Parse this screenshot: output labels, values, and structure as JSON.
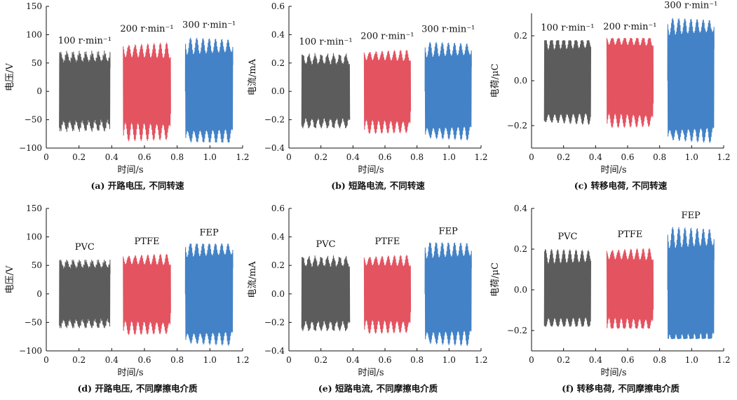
{
  "chart_data": [
    {
      "type": "line",
      "panel": "a",
      "caption": "(a) 开路电压, 不同转速",
      "xlabel": "时间/s",
      "ylabel": "电压/V",
      "xlim": [
        0,
        1.2
      ],
      "ylim": [
        -100,
        150
      ],
      "xticks": [
        "0",
        "0.2",
        "0.4",
        "0.6",
        "0.8",
        "1.0",
        "1.2"
      ],
      "yticks": [
        "−100",
        "−50",
        "0",
        "50",
        "100",
        "150"
      ],
      "series": [
        {
          "name": "100 r·min⁻¹",
          "color": "#4a4a4a",
          "x_range": [
            0.08,
            0.39
          ],
          "min_amp": 55,
          "max_amp": 72,
          "y_peak": 72,
          "y_trough": -72
        },
        {
          "name": "200 r·min⁻¹",
          "color": "#e0404f",
          "x_range": [
            0.47,
            0.76
          ],
          "min_amp": 60,
          "max_amp": 88,
          "y_peak": 88,
          "y_trough": -88
        },
        {
          "name": "300 r·min⁻¹",
          "color": "#2f74c0",
          "x_range": [
            0.85,
            1.14
          ],
          "min_amp": 70,
          "max_amp": 95,
          "y_peak": 95,
          "y_trough": -90
        }
      ],
      "annotations": [
        "100 r·min⁻¹",
        "200 r·min⁻¹",
        "300 r·min⁻¹"
      ]
    },
    {
      "type": "line",
      "panel": "b",
      "caption": "(b) 短路电流, 不同转速",
      "xlabel": "时间/s",
      "ylabel": "电流/mA",
      "xlim": [
        0,
        1.2
      ],
      "ylim": [
        -0.4,
        0.6
      ],
      "xticks": [
        "0",
        "0.2",
        "0.4",
        "0.6",
        "0.8",
        "1.0",
        "1.2"
      ],
      "yticks": [
        "−0.4",
        "−0.2",
        "0.0",
        "0.2",
        "0.4",
        "0.6"
      ],
      "series": [
        {
          "name": "100 r·min⁻¹",
          "color": "#4a4a4a",
          "x_range": [
            0.08,
            0.38
          ],
          "min_amp": 0.2,
          "max_amp": 0.27,
          "y_peak": 0.27,
          "y_trough": -0.26
        },
        {
          "name": "200 r·min⁻¹",
          "color": "#e0404f",
          "x_range": [
            0.47,
            0.76
          ],
          "min_amp": 0.22,
          "max_amp": 0.3,
          "y_peak": 0.3,
          "y_trough": -0.3
        },
        {
          "name": "300 r·min⁻¹",
          "color": "#2f74c0",
          "x_range": [
            0.85,
            1.14
          ],
          "min_amp": 0.26,
          "max_amp": 0.35,
          "y_peak": 0.35,
          "y_trough": -0.35
        }
      ],
      "annotations": [
        "100 r·min⁻¹",
        "200 r·min⁻¹",
        "300 r·min⁻¹"
      ]
    },
    {
      "type": "line",
      "panel": "c",
      "caption": "(c) 转移电荷, 不同转速",
      "xlabel": "时间/s",
      "ylabel": "电荷/μC",
      "xlim": [
        0,
        1.2
      ],
      "ylim": [
        -0.3,
        0.3
      ],
      "xticks": [
        "0",
        "0.2",
        "0.4",
        "0.6",
        "0.8",
        "1.0",
        "1.2"
      ],
      "yticks": [
        "−0.2",
        "0.0",
        "0.2"
      ],
      "series": [
        {
          "name": "100 r·min⁻¹",
          "color": "#4a4a4a",
          "x_range": [
            0.08,
            0.37
          ],
          "min_amp": 0.15,
          "max_amp": 0.2,
          "y_peak": 0.18,
          "y_trough": -0.21
        },
        {
          "name": "200 r·min⁻¹",
          "color": "#e0404f",
          "x_range": [
            0.47,
            0.76
          ],
          "min_amp": 0.16,
          "max_amp": 0.21,
          "y_peak": 0.19,
          "y_trough": -0.22
        },
        {
          "name": "300 r·min⁻¹",
          "color": "#2f74c0",
          "x_range": [
            0.85,
            1.14
          ],
          "min_amp": 0.22,
          "max_amp": 0.28,
          "y_peak": 0.28,
          "y_trough": -0.28
        }
      ],
      "annotations": [
        "100 r·min⁻¹",
        "200 r·min⁻¹",
        "300 r·min⁻¹"
      ]
    },
    {
      "type": "line",
      "panel": "d",
      "caption": "(d) 开路电压, 不同摩擦电介质",
      "xlabel": "时间/s",
      "ylabel": "电压/V",
      "xlim": [
        0,
        1.2
      ],
      "ylim": [
        -100,
        150
      ],
      "xticks": [
        "0",
        "0.2",
        "0.4",
        "0.6",
        "0.8",
        "1.0",
        "1.2"
      ],
      "yticks": [
        "−100",
        "−50",
        "0",
        "50",
        "100",
        "150"
      ],
      "series": [
        {
          "name": "PVC",
          "color": "#4a4a4a",
          "x_range": [
            0.08,
            0.39
          ],
          "min_amp": 48,
          "max_amp": 62,
          "y_peak": 60,
          "y_trough": -60
        },
        {
          "name": "PTFE",
          "color": "#e0404f",
          "x_range": [
            0.47,
            0.76
          ],
          "min_amp": 52,
          "max_amp": 72,
          "y_peak": 70,
          "y_trough": -72
        },
        {
          "name": "FEP",
          "color": "#2f74c0",
          "x_range": [
            0.85,
            1.14
          ],
          "min_amp": 70,
          "max_amp": 92,
          "y_peak": 88,
          "y_trough": -93
        }
      ],
      "annotations": [
        "PVC",
        "PTFE",
        "FEP"
      ]
    },
    {
      "type": "line",
      "panel": "e",
      "caption": "(e) 短路电流, 不同摩擦电介质",
      "xlabel": "时间/s",
      "ylabel": "电流/mA",
      "xlim": [
        0,
        1.2
      ],
      "ylim": [
        -0.4,
        0.6
      ],
      "xticks": [
        "0",
        "0.2",
        "0.4",
        "0.6",
        "0.8",
        "1.0",
        "1.2"
      ],
      "yticks": [
        "−0.4",
        "−0.2",
        "0.0",
        "0.2",
        "0.4",
        "0.6"
      ],
      "series": [
        {
          "name": "PVC",
          "color": "#4a4a4a",
          "x_range": [
            0.08,
            0.38
          ],
          "min_amp": 0.2,
          "max_amp": 0.27,
          "y_peak": 0.27,
          "y_trough": -0.26
        },
        {
          "name": "PTFE",
          "color": "#e0404f",
          "x_range": [
            0.47,
            0.76
          ],
          "min_amp": 0.2,
          "max_amp": 0.28,
          "y_peak": 0.28,
          "y_trough": -0.28
        },
        {
          "name": "FEP",
          "color": "#2f74c0",
          "x_range": [
            0.85,
            1.14
          ],
          "min_amp": 0.27,
          "max_amp": 0.37,
          "y_peak": 0.36,
          "y_trough": -0.37
        }
      ],
      "annotations": [
        "PVC",
        "PTFE",
        "FEP"
      ]
    },
    {
      "type": "line",
      "panel": "f",
      "caption": "(f) 转移电荷, 不同摩擦电介质",
      "xlabel": "时间/s",
      "ylabel": "电荷/μC",
      "xlim": [
        0,
        1.2
      ],
      "ylim": [
        -0.3,
        0.4
      ],
      "xticks": [
        "0",
        "0.2",
        "0.4",
        "0.6",
        "0.8",
        "1.0",
        "1.2"
      ],
      "yticks": [
        "−0.2",
        "0.0",
        "0.2",
        "0.4"
      ],
      "series": [
        {
          "name": "PVC",
          "color": "#4a4a4a",
          "x_range": [
            0.08,
            0.37
          ],
          "min_amp": 0.14,
          "max_amp": 0.2,
          "y_peak": 0.2,
          "y_trough": -0.18
        },
        {
          "name": "PTFE",
          "color": "#e0404f",
          "x_range": [
            0.47,
            0.76
          ],
          "min_amp": 0.15,
          "max_amp": 0.21,
          "y_peak": 0.21,
          "y_trough": -0.19
        },
        {
          "name": "FEP",
          "color": "#2f74c0",
          "x_range": [
            0.85,
            1.14
          ],
          "min_amp": 0.22,
          "max_amp": 0.31,
          "y_peak": 0.31,
          "y_trough": -0.24
        }
      ],
      "annotations": [
        "PVC",
        "PTFE",
        "FEP"
      ]
    }
  ]
}
